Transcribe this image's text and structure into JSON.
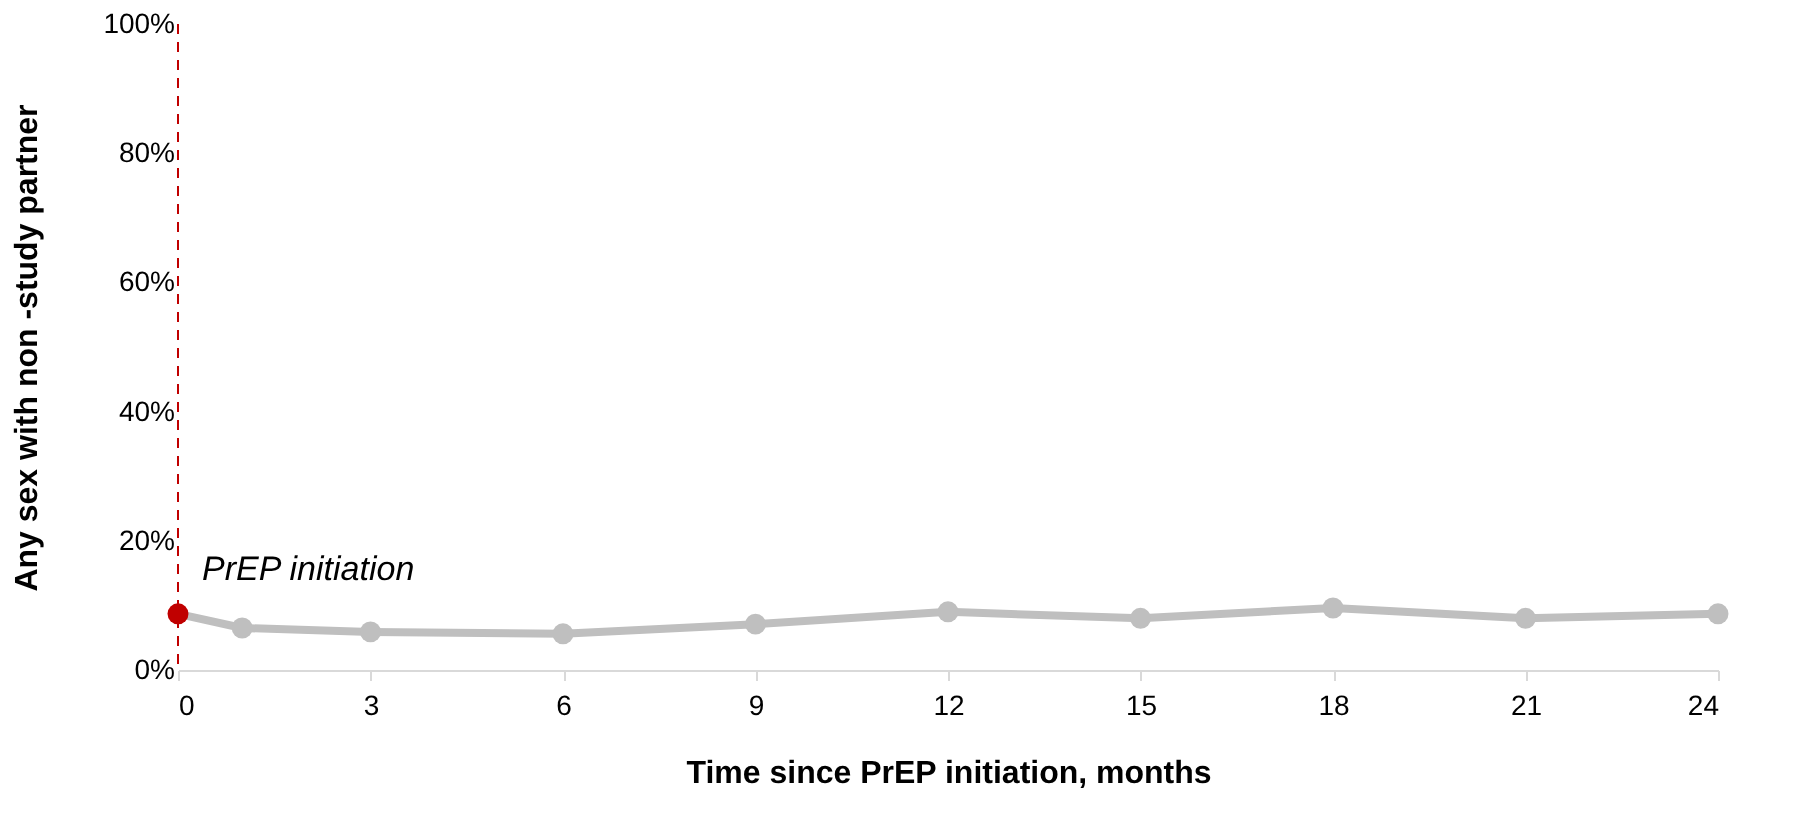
{
  "chart_data": {
    "type": "line",
    "xlabel": "Time since PrEP initiation, months",
    "ylabel": "Any sex with non -study partner",
    "x": [
      0,
      1,
      3,
      6,
      9,
      12,
      15,
      18,
      21,
      24
    ],
    "series": [
      {
        "color": "#bfbfbf",
        "colors": [
          "#c00000",
          "#bfbfbf",
          "#bfbfbf",
          "#bfbfbf",
          "#bfbfbf",
          "#bfbfbf",
          "#bfbfbf",
          "#bfbfbf",
          "#bfbfbf",
          "#bfbfbf"
        ],
        "values": [
          8.7,
          6.5,
          5.9,
          5.6,
          7.1,
          9.0,
          8.0,
          9.6,
          8.0,
          8.7
        ]
      }
    ],
    "xlim": [
      0,
      24
    ],
    "xticks": [
      0,
      3,
      6,
      9,
      12,
      15,
      18,
      21,
      24
    ],
    "ylim": [
      0,
      100
    ],
    "yticks": [
      {
        "value": 0,
        "label": "0%"
      },
      {
        "value": 20,
        "label": "20%"
      },
      {
        "value": 40,
        "label": "40%"
      },
      {
        "value": 60,
        "label": "60%"
      },
      {
        "value": 80,
        "label": "80%"
      },
      {
        "value": 100,
        "label": "100%"
      }
    ],
    "ref_lines": [
      {
        "axis": "x",
        "value": 0,
        "label": "PrEP initiation",
        "color": "#c00000",
        "line_style": "dashed"
      }
    ],
    "grid": false,
    "marker": "circle",
    "line_style": "solid"
  }
}
